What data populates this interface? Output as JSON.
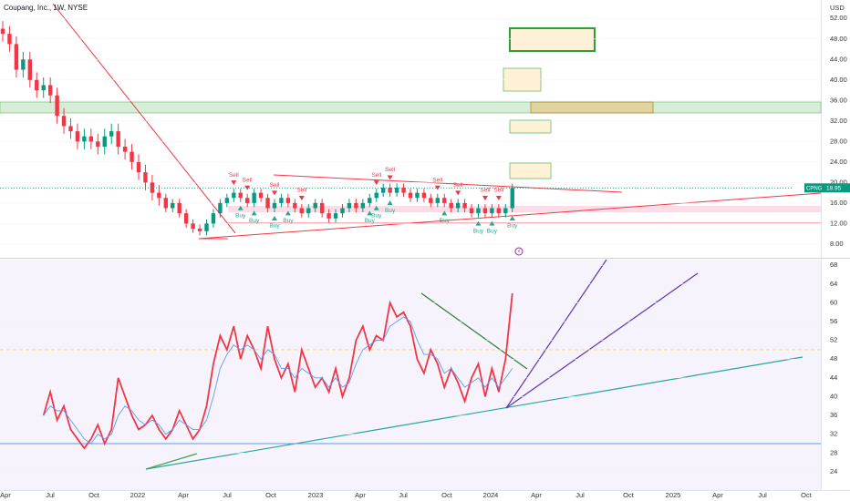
{
  "header": {
    "title": "Coupang, Inc., 1W, NYSE",
    "currency": "USD"
  },
  "chart_data": [
    {
      "type": "candlestick",
      "up_color": "#089981",
      "down_color": "#f23645",
      "ylim": [
        5.5,
        55.6
      ],
      "yticks": [
        {
          "value": 8,
          "label": "8.00"
        },
        {
          "value": 12,
          "label": "12.00"
        },
        {
          "value": 16,
          "label": "16.00"
        },
        {
          "value": 20,
          "label": "20.00"
        },
        {
          "value": 24,
          "label": "24.00"
        },
        {
          "value": 28,
          "label": "28.00"
        },
        {
          "value": 32,
          "label": "32.00"
        },
        {
          "value": 36,
          "label": "36.00"
        },
        {
          "value": 40,
          "label": "40.00"
        },
        {
          "value": 44,
          "label": "44.00"
        },
        {
          "value": 48,
          "label": "48.00"
        },
        {
          "value": 52,
          "label": "52.00"
        }
      ],
      "open": [
        50,
        49,
        47,
        42,
        44,
        40,
        38,
        39,
        37,
        33,
        31,
        30,
        28,
        29,
        28,
        27,
        29,
        30,
        27,
        26,
        24,
        22,
        20,
        18,
        17,
        15,
        16,
        14,
        12,
        11,
        10.5,
        12,
        14,
        16,
        17,
        18,
        17,
        16,
        18,
        17,
        15,
        16,
        17,
        16,
        15,
        14,
        15,
        16,
        14,
        13,
        14,
        15,
        16,
        15,
        16,
        17,
        18,
        19,
        18,
        19,
        18,
        17,
        18,
        17,
        16,
        17,
        16,
        15,
        16,
        15,
        14,
        15,
        14,
        15,
        14,
        15
      ],
      "high": [
        51.5,
        50.5,
        48.5,
        45.5,
        45.5,
        41.5,
        40.5,
        40.5,
        38.5,
        34.5,
        32.5,
        31.5,
        30.5,
        30.5,
        29.5,
        30.5,
        31.5,
        31.5,
        28.5,
        27.5,
        25.5,
        23.5,
        21.5,
        19.5,
        17.8,
        16.8,
        16.8,
        14.8,
        12.8,
        11.8,
        12.8,
        14.8,
        16.8,
        17.8,
        18.8,
        18.8,
        17.8,
        18.8,
        18.8,
        17.8,
        16.8,
        17.8,
        17.8,
        16.8,
        15.8,
        15.8,
        16.8,
        16.8,
        14.8,
        14.8,
        15.8,
        16.8,
        16.8,
        16.8,
        17.8,
        18.8,
        19.8,
        19.8,
        19.8,
        19.8,
        18.8,
        18.8,
        18.8,
        17.8,
        17.8,
        17.8,
        16.8,
        16.8,
        16.8,
        15.8,
        15.8,
        15.8,
        15.8,
        15.8,
        15.8,
        19.8
      ],
      "low": [
        47.5,
        45.5,
        40.5,
        40.5,
        38.5,
        36.5,
        36.5,
        35.5,
        31.5,
        29.5,
        28.5,
        26.5,
        26.5,
        26.5,
        25.5,
        25.5,
        27.5,
        25.5,
        24.5,
        22.5,
        20.5,
        18.5,
        16.5,
        15.5,
        14.2,
        14.2,
        13.2,
        11.2,
        10.2,
        9.7,
        9.7,
        11.2,
        13.2,
        15.2,
        16.2,
        16.2,
        15.2,
        15.2,
        16.2,
        14.2,
        14.2,
        15.2,
        15.2,
        14.2,
        13.2,
        13.2,
        14.2,
        13.2,
        12.2,
        12.2,
        13.2,
        14.2,
        14.2,
        14.2,
        15.2,
        16.2,
        17.2,
        17.2,
        17.2,
        17.2,
        16.2,
        16.2,
        16.2,
        15.2,
        15.2,
        15.2,
        14.2,
        14.2,
        14.2,
        13.2,
        13.2,
        13.2,
        13.2,
        13.2,
        13.2,
        14.2
      ],
      "close": [
        49,
        47,
        42,
        44,
        40,
        38,
        39,
        37,
        33,
        31,
        30,
        28,
        29,
        28,
        27,
        29,
        30,
        27,
        26,
        24,
        22,
        20,
        18,
        17,
        15,
        16,
        14,
        12,
        11,
        10.5,
        12,
        14,
        16,
        17,
        18,
        17,
        16,
        18,
        17,
        15,
        16,
        17,
        16,
        15,
        14,
        15,
        16,
        14,
        13,
        14,
        15,
        16,
        15,
        16,
        17,
        18,
        19,
        18,
        19,
        18,
        17,
        18,
        17,
        16,
        17,
        16,
        15,
        16,
        15,
        14,
        15,
        14,
        15,
        14,
        15,
        18.95
      ],
      "signals": [
        {
          "text": "Sell",
          "index": 34
        },
        {
          "text": "Sell",
          "index": 36
        },
        {
          "text": "Sell",
          "index": 40
        },
        {
          "text": "Sell",
          "index": 44
        },
        {
          "text": "Sell",
          "index": 55
        },
        {
          "text": "Sell",
          "index": 57
        },
        {
          "text": "Sell",
          "index": 64
        },
        {
          "text": "Sell",
          "index": 67
        },
        {
          "text": "Sell",
          "index": 71
        },
        {
          "text": "Sell",
          "index": 73
        },
        {
          "text": "Buy",
          "index": 35
        },
        {
          "text": "Buy",
          "index": 37
        },
        {
          "text": "Buy",
          "index": 40
        },
        {
          "text": "Buy",
          "index": 42
        },
        {
          "text": "Buy",
          "index": 54
        },
        {
          "text": "Buy",
          "index": 55
        },
        {
          "text": "Buy",
          "index": 57
        },
        {
          "text": "Buy",
          "index": 65
        },
        {
          "text": "Buy",
          "index": 70
        },
        {
          "text": "Buy",
          "index": 72
        },
        {
          "text": "Buy",
          "index": 75
        }
      ],
      "price_label": {
        "symbol": "CPNG",
        "value": 18.95,
        "label": "18.95"
      }
    },
    {
      "type": "line",
      "ylim": [
        20.1,
        69.2
      ],
      "yticks": [
        24,
        28,
        32,
        36,
        40,
        44,
        48,
        52,
        56,
        60,
        64,
        68
      ],
      "hlines": [
        {
          "value": 30,
          "color": "#5b9cf6"
        },
        {
          "value": 50,
          "color": "#f5d94a"
        }
      ],
      "series": [
        {
          "color": "#f23645",
          "values": [
            null,
            null,
            null,
            null,
            null,
            null,
            36,
            41,
            35,
            38,
            33,
            31,
            29,
            31,
            34,
            30,
            33,
            44,
            40,
            36,
            33,
            34,
            36,
            33,
            31,
            33,
            37,
            34,
            31,
            33,
            38,
            47,
            53,
            50,
            55,
            48,
            53,
            50,
            46,
            55,
            48,
            44,
            47,
            41,
            50,
            46,
            42,
            44,
            41,
            46,
            40,
            44,
            52,
            55,
            50,
            53,
            52,
            60,
            57,
            58,
            55,
            48,
            45,
            50,
            47,
            42,
            46,
            43,
            39,
            44,
            47,
            40,
            46,
            41,
            48,
            62
          ]
        },
        {
          "color": "#5b9cf6",
          "values": [
            null,
            null,
            null,
            null,
            null,
            null,
            36,
            38,
            37,
            37,
            35,
            33,
            31,
            30,
            32,
            31,
            32,
            36,
            38,
            37,
            35,
            34,
            35,
            34,
            32,
            33,
            35,
            34,
            33,
            33,
            35,
            40,
            46,
            49,
            51,
            50,
            51,
            50,
            48,
            50,
            49,
            46,
            46,
            44,
            46,
            45,
            44,
            44,
            42,
            44,
            42,
            43,
            47,
            50,
            51,
            52,
            52,
            55,
            56,
            57,
            56,
            52,
            49,
            49,
            48,
            45,
            46,
            44,
            42,
            43,
            44,
            42,
            44,
            42,
            44,
            46
          ]
        }
      ]
    }
  ],
  "x_axis": {
    "labels": [
      "Apr",
      "Jul",
      "Oct",
      "2022",
      "Apr",
      "Jul",
      "Oct",
      "2023",
      "Apr",
      "Jul",
      "Oct",
      "2024",
      "Apr",
      "Jul",
      "Oct",
      "2025",
      "Apr",
      "Jul",
      "Oct"
    ]
  }
}
